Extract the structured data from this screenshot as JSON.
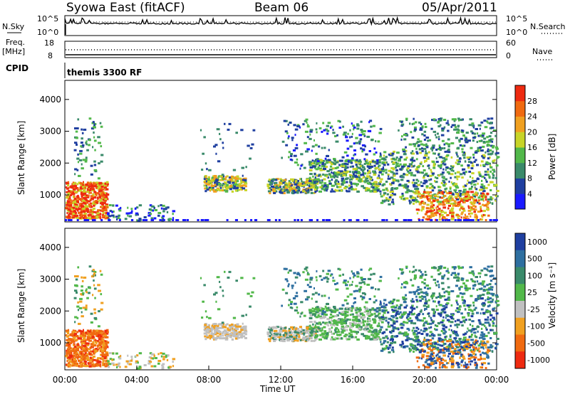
{
  "header": {
    "station": "Syowa East (fitACF)",
    "beam": "Beam 06",
    "date": "05/Apr/2011"
  },
  "status_panel": {
    "left_label_top": "N.Sky",
    "left_ticks_top": [
      "10^5",
      "10^0"
    ],
    "right_label_top": "N.Search",
    "right_ticks_top": [
      "10^5",
      "10^0"
    ],
    "left_label_mid": "Freq.",
    "left_unit_mid": "[MHz]",
    "left_ticks_mid": [
      "18",
      "8"
    ],
    "right_label_mid": "Nave",
    "right_ticks_mid": [
      "60",
      "0"
    ],
    "cpid_label": "CPID",
    "cpid_value": "themis 3300 RF"
  },
  "colors": {
    "power_scale": [
      "#1a1aff",
      "#1f3fa0",
      "#3a8a6a",
      "#52b84a",
      "#c8d428",
      "#f0a020",
      "#f06a10",
      "#ee2a10"
    ],
    "velocity_scale": [
      "#1f3fa0",
      "#2e6fa0",
      "#3a8a6a",
      "#52b84a",
      "#c0c0c0",
      "#f0a020",
      "#f06a10",
      "#ee2a10"
    ]
  },
  "chart_data": [
    {
      "type": "heatmap",
      "name": "power",
      "ylabel": "Slant Range [km]",
      "xlim_hours": [
        0,
        24
      ],
      "ylim": [
        150,
        4600
      ],
      "yticks": [
        "1000",
        "2000",
        "3000",
        "4000"
      ],
      "colorbar": {
        "label": "Power [dB]",
        "ticks": [
          "4",
          "8",
          "12",
          "16",
          "20",
          "24",
          "28"
        ]
      }
    },
    {
      "type": "heatmap",
      "name": "velocity",
      "ylabel": "Slant Range [km]",
      "xlabel": "Time UT",
      "xlim_hours": [
        0,
        24
      ],
      "ylim": [
        150,
        4600
      ],
      "xticks": [
        "00:00",
        "04:00",
        "08:00",
        "12:00",
        "16:00",
        "20:00",
        "00:00"
      ],
      "yticks": [
        "1000",
        "2000",
        "3000",
        "4000"
      ],
      "colorbar": {
        "label": "Velocity [m s⁻¹]",
        "ticks": [
          "1000",
          "500",
          "100",
          "25",
          "-25",
          "-100",
          "-500",
          "-1000"
        ]
      }
    }
  ]
}
